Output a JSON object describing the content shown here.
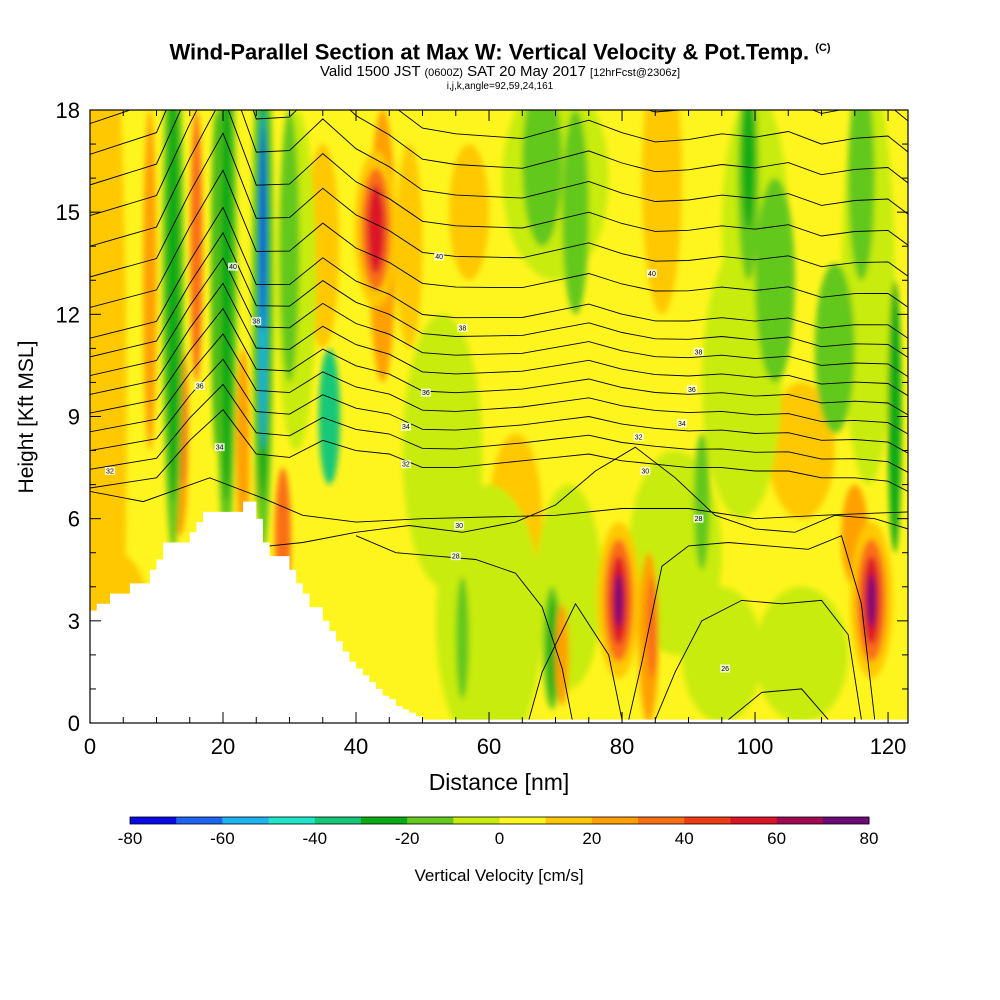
{
  "title": {
    "main": "Wind-Parallel Section at Max W: Vertical Velocity & Pot.Temp.",
    "copyright": "(C)",
    "valid_prefix": "Valid 1500 JST",
    "valid_utc": "(0600Z)",
    "valid_date": "SAT 20 May 2017",
    "forecast_tag": "[12hrFcst@2306z]",
    "params": "i,j,k,angle=92,59,24,161"
  },
  "chart_data": {
    "type": "heatmap",
    "xlabel": "Distance [nm]",
    "ylabel": "Height [Kft MSL]",
    "xlim": [
      0,
      123
    ],
    "ylim": [
      0,
      18
    ],
    "x_ticks": [
      "0",
      "20",
      "40",
      "60",
      "80",
      "100",
      "120"
    ],
    "y_ticks": [
      "0",
      "3",
      "6",
      "9",
      "12",
      "15",
      "18"
    ],
    "grid": false,
    "colorbar": {
      "label": "Vertical Velocity [cm/s]",
      "placement": "bottom",
      "ticks": [
        "-80",
        "-60",
        "-40",
        "-20",
        "0",
        "20",
        "40",
        "60",
        "80"
      ],
      "levels": [
        -80,
        -70,
        -60,
        -50,
        -40,
        -30,
        -20,
        -10,
        0,
        10,
        20,
        30,
        40,
        50,
        60,
        70,
        80
      ],
      "colors": [
        "#0a0ae6",
        "#1e64f0",
        "#1eb4f0",
        "#1ee6c8",
        "#14c878",
        "#0aaa14",
        "#64c81e",
        "#c8ec0a",
        "#fff51e",
        "#ffc800",
        "#ffa000",
        "#fa6e14",
        "#f03c14",
        "#dc1428",
        "#a00a50",
        "#6e0a78"
      ]
    },
    "terrain_profile": {
      "x": [
        0,
        1,
        3,
        6,
        9,
        10,
        11,
        14,
        15,
        16,
        17,
        18,
        19,
        20,
        21,
        22,
        23,
        24,
        25,
        26,
        27,
        29,
        30,
        31,
        32,
        33,
        34,
        35,
        36,
        37,
        38,
        39,
        40,
        41,
        42,
        43,
        44,
        45,
        46,
        47,
        48,
        49,
        50,
        51,
        123
      ],
      "height": [
        3.3,
        3.5,
        3.8,
        4.1,
        4.5,
        4.8,
        5.3,
        5.3,
        5.6,
        5.9,
        6.2,
        6.2,
        6.2,
        6.2,
        6.2,
        6.2,
        6.5,
        6.5,
        6.0,
        5.3,
        4.9,
        4.9,
        4.5,
        4.1,
        3.8,
        3.4,
        3.4,
        3.0,
        2.7,
        2.4,
        2.1,
        1.8,
        1.6,
        1.4,
        1.2,
        1.0,
        0.8,
        0.7,
        0.5,
        0.4,
        0.3,
        0.2,
        0.1,
        0.1,
        0.1
      ]
    },
    "contour_field": "Potential temperature",
    "contour_labels": [
      {
        "text": "40",
        "x": 21.5,
        "y": 13.4
      },
      {
        "text": "40",
        "x": 52.5,
        "y": 13.7
      },
      {
        "text": "40",
        "x": 84.5,
        "y": 13.2
      },
      {
        "text": "38",
        "x": 25.0,
        "y": 11.8
      },
      {
        "text": "38",
        "x": 56.0,
        "y": 11.6
      },
      {
        "text": "38",
        "x": 91.5,
        "y": 10.9
      },
      {
        "text": "36",
        "x": 16.5,
        "y": 9.9
      },
      {
        "text": "36",
        "x": 50.5,
        "y": 9.7
      },
      {
        "text": "36",
        "x": 90.5,
        "y": 9.8
      },
      {
        "text": "34",
        "x": 19.5,
        "y": 8.1
      },
      {
        "text": "34",
        "x": 47.5,
        "y": 8.7
      },
      {
        "text": "34",
        "x": 89.0,
        "y": 8.8
      },
      {
        "text": "32",
        "x": 3.0,
        "y": 7.4
      },
      {
        "text": "32",
        "x": 47.5,
        "y": 7.6
      },
      {
        "text": "32",
        "x": 82.5,
        "y": 8.4
      },
      {
        "text": "30",
        "x": 55.5,
        "y": 5.8
      },
      {
        "text": "30",
        "x": 83.5,
        "y": 7.4
      },
      {
        "text": "28",
        "x": 55.0,
        "y": 4.9
      },
      {
        "text": "28",
        "x": 91.5,
        "y": 6.0
      },
      {
        "text": "26",
        "x": 95.5,
        "y": 1.6
      }
    ],
    "features": [
      {
        "label": "downdraft",
        "x": 12.5,
        "w": -50
      },
      {
        "label": "downdraft",
        "x": 20.5,
        "w": -45
      },
      {
        "label": "downdraft",
        "x": 26.0,
        "w": -80
      },
      {
        "label": "updraft",
        "x": 43.0,
        "w": 50
      },
      {
        "label": "updraft",
        "x": 79.5,
        "w": 75
      },
      {
        "label": "updraft",
        "x": 117.5,
        "w": 75
      }
    ]
  }
}
